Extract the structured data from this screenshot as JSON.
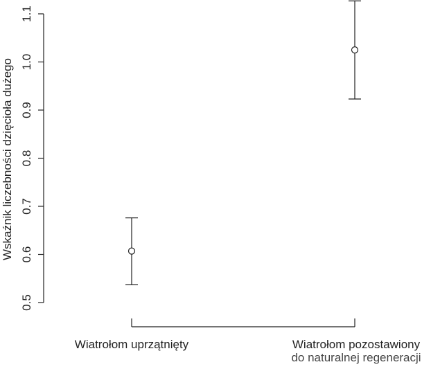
{
  "chart_data": {
    "type": "errorbar",
    "y_label": "Wskaźnik liczebności dzięcioła dużego",
    "categories": [
      "Wiatrołom uprzątnięty",
      "Wiatrołom pozostawiony"
    ],
    "category_sublabels": [
      null,
      "do naturalnej regeneracji"
    ],
    "values": [
      0.607,
      1.025
    ],
    "lower": [
      0.537,
      0.923
    ],
    "upper": [
      0.676,
      1.127
    ],
    "ylim": [
      0.5,
      1.1
    ],
    "yticks": [
      0.5,
      0.6,
      0.7,
      0.8,
      0.9,
      1.0,
      1.1
    ],
    "color": "#222222"
  }
}
